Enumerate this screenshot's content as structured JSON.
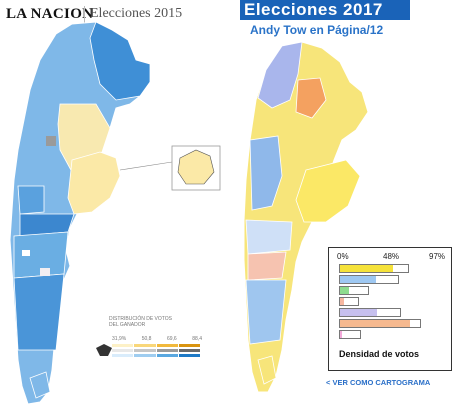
{
  "left": {
    "logo": "LA NACION",
    "subtitle": "Elecciones 2015",
    "legend": {
      "title": "DISTRIBUCIÓN DE VOTOS DEL GANADOR",
      "ticks": [
        "31,9%",
        "50,8",
        "69,6",
        "88,4"
      ],
      "rows": [
        [
          "#fdf1c7",
          "#f9d77a",
          "#f1b93c",
          "#d99410"
        ],
        [
          "#e8e8e8",
          "#c6c6c6",
          "#9a9a9a",
          "#6a6a6a"
        ],
        [
          "#d9ecfb",
          "#9fcdf0",
          "#5aa8e0",
          "#1f7ac6"
        ]
      ]
    }
  },
  "right": {
    "title": "Elecciones  2017",
    "subtitle": "Andy Tow en  Página/12",
    "legend": {
      "ticks": [
        "0%",
        "48%",
        "97%"
      ],
      "label": "Densidad de votos",
      "bars": [
        {
          "fill": 0.78,
          "color": "#f5e23a"
        },
        {
          "fill": 0.62,
          "color": "#9ec8f2"
        },
        {
          "fill": 0.32,
          "color": "#8fdc8f"
        },
        {
          "fill": 0.22,
          "color": "#f7b7a0"
        },
        {
          "fill": 0.62,
          "color": "#c6c0ee"
        },
        {
          "fill": 0.88,
          "color": "#f6b98f"
        },
        {
          "fill": 0.12,
          "color": "#f3a9da"
        }
      ]
    },
    "link": "< VER COMO CARTOGRAMA"
  },
  "colors": {
    "title_bg": "#1a63b8",
    "link": "#2a6fc8"
  }
}
